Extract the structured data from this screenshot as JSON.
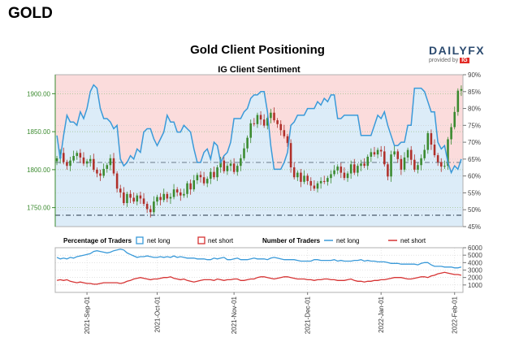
{
  "page": {
    "heading": "GOLD"
  },
  "brand": {
    "main": "DAILY",
    "fx": "FX",
    "sub": "provided by",
    "ig": "IG"
  },
  "chart_data": {
    "type": "candlestick-sentiment",
    "title": "Gold Client Positioning",
    "subtitle": "IG Client Sentiment",
    "colors": {
      "price_up": "#3a8a2e",
      "price_down": "#b0302a",
      "long": "#3a9ad9",
      "short": "#d63333",
      "fill_top": "#fbdcdc",
      "fill_bottom": "#dcecf8"
    },
    "price_axis": {
      "ticks": [
        "1750.00",
        "1800.00",
        "1850.00",
        "1900.00"
      ],
      "values": [
        1750,
        1800,
        1850,
        1900
      ],
      "range": [
        1725,
        1925
      ]
    },
    "pct_axis": {
      "ticks": [
        "45%",
        "50%",
        "55%",
        "60%",
        "65%",
        "70%",
        "75%",
        "80%",
        "85%",
        "90%"
      ],
      "values": [
        45,
        50,
        55,
        60,
        65,
        70,
        75,
        80,
        85,
        90
      ],
      "range": [
        45,
        90
      ]
    },
    "count_axis": {
      "ticks": [
        "1000",
        "2000",
        "3000",
        "4000",
        "5000",
        "6000"
      ],
      "values": [
        1000,
        2000,
        3000,
        4000,
        5000,
        6000
      ],
      "range": [
        0,
        6000
      ]
    },
    "x_labels": [
      "2021-Sep-01",
      "2021-Oct-01",
      "2021-Nov-01",
      "2021-Dec-01",
      "2022-Jan-01",
      "2022-Feb-01"
    ],
    "num_periods": 122,
    "x_label_index": [
      9,
      30,
      53,
      75,
      97,
      119
    ],
    "reference_lines": {
      "price_dashdot": 1740,
      "pct_dashdot": 64
    },
    "legend": {
      "pct_title": "Percentage of Traders",
      "count_title": "Number of Traders",
      "net_long": "net long",
      "net_short": "net short"
    },
    "closes": [
      1815,
      1822,
      1810,
      1805,
      1812,
      1818,
      1822,
      1816,
      1808,
      1811,
      1814,
      1800,
      1795,
      1792,
      1801,
      1806,
      1815,
      1795,
      1775,
      1770,
      1756,
      1768,
      1763,
      1758,
      1766,
      1762,
      1755,
      1748,
      1744,
      1758,
      1764,
      1760,
      1768,
      1762,
      1764,
      1774,
      1770,
      1766,
      1768,
      1782,
      1774,
      1786,
      1793,
      1790,
      1782,
      1788,
      1797,
      1790,
      1803,
      1812,
      1798,
      1805,
      1808,
      1797,
      1805,
      1815,
      1828,
      1842,
      1861,
      1860,
      1872,
      1866,
      1858,
      1868,
      1875,
      1865,
      1860,
      1852,
      1844,
      1835,
      1803,
      1790,
      1796,
      1784,
      1792,
      1785,
      1779,
      1775,
      1782,
      1785,
      1784,
      1789,
      1794,
      1799,
      1804,
      1796,
      1789,
      1795,
      1807,
      1796,
      1805,
      1808,
      1805,
      1817,
      1823,
      1820,
      1826,
      1824,
      1807,
      1791,
      1820,
      1824,
      1814,
      1800,
      1816,
      1826,
      1813,
      1800,
      1806,
      1815,
      1826,
      1848,
      1833,
      1819,
      1810,
      1804,
      1805,
      1840,
      1856,
      1876,
      1904,
      1906
    ],
    "net_long_pct": [
      72,
      65,
      72,
      78,
      76,
      76,
      75,
      79,
      77,
      80,
      85,
      87,
      86,
      80,
      77,
      77,
      76,
      74,
      75,
      65,
      63,
      64,
      66,
      65,
      68,
      67,
      73,
      74,
      74,
      71,
      69,
      71,
      73,
      78,
      76,
      76,
      73,
      73,
      75,
      74,
      73,
      68,
      64,
      64,
      67,
      68,
      65,
      70,
      69,
      64,
      66,
      67,
      70,
      77,
      77,
      77,
      79,
      80,
      83,
      84,
      84,
      85,
      85,
      79,
      69,
      62,
      62,
      62,
      64,
      67,
      75,
      76,
      78,
      78,
      78,
      80,
      80,
      80,
      82,
      81,
      83,
      82,
      84,
      84,
      77,
      77,
      78,
      78,
      78,
      78,
      78,
      72,
      72,
      72,
      72,
      75,
      78,
      77,
      79,
      75,
      72,
      69,
      69,
      70,
      70,
      75,
      75,
      86,
      86,
      86,
      85,
      82,
      79,
      79,
      70,
      68,
      69,
      64,
      61,
      63,
      62,
      65
    ],
    "net_long_count": [
      4700,
      4500,
      4600,
      4500,
      4700,
      4600,
      4800,
      4900,
      5000,
      5100,
      5200,
      5500,
      5600,
      5500,
      5400,
      5300,
      5400,
      5600,
      5700,
      5800,
      5700,
      5300,
      5100,
      4900,
      4700,
      4800,
      4800,
      4900,
      4800,
      4700,
      4700,
      4800,
      4700,
      4800,
      4700,
      4900,
      4700,
      4800,
      4700,
      4600,
      4600,
      4600,
      4500,
      4500,
      4500,
      4400,
      4400,
      4600,
      4500,
      4600,
      4700,
      4400,
      4400,
      4500,
      4600,
      4400,
      4400,
      4400,
      4500,
      4600,
      4500,
      4500,
      4500,
      4400,
      4600,
      4700,
      4600,
      4500,
      4400,
      4400,
      4400,
      4400,
      4300,
      4200,
      4200,
      4200,
      4200,
      4400,
      4400,
      4300,
      4300,
      4300,
      4300,
      4400,
      4200,
      4300,
      4200,
      4200,
      4200,
      4300,
      4300,
      4400,
      4200,
      4300,
      4200,
      4200,
      4100,
      4100,
      4100,
      4000,
      3900,
      3900,
      3900,
      3800,
      3800,
      3800,
      3800,
      3800,
      3700,
      3900,
      4000,
      4000,
      3700,
      3500,
      3500,
      3500,
      3400,
      3400,
      3400,
      3300,
      3300,
      3400
    ],
    "net_short_count": [
      1600,
      1700,
      1600,
      1700,
      1500,
      1400,
      1300,
      1400,
      1300,
      1200,
      1200,
      1100,
      1100,
      1200,
      1300,
      1300,
      1300,
      1300,
      1300,
      1200,
      1300,
      1500,
      1600,
      1800,
      1900,
      2000,
      1900,
      1800,
      1700,
      1800,
      1800,
      1900,
      2000,
      2000,
      2100,
      1900,
      1800,
      1700,
      1800,
      1600,
      1500,
      1400,
      1500,
      1600,
      1700,
      1700,
      1700,
      1600,
      1800,
      1700,
      1600,
      1700,
      1700,
      1800,
      1800,
      1600,
      1600,
      1700,
      1800,
      1800,
      2000,
      2100,
      2100,
      2000,
      1900,
      1800,
      1900,
      2000,
      2100,
      2100,
      2000,
      1900,
      1800,
      1800,
      1800,
      1700,
      1700,
      1600,
      1700,
      1700,
      1800,
      1800,
      1700,
      1700,
      1600,
      1600,
      1600,
      1700,
      1800,
      1600,
      1500,
      1500,
      1400,
      1500,
      1500,
      1600,
      1600,
      1700,
      1700,
      1800,
      1900,
      2000,
      2000,
      2000,
      1900,
      1800,
      1800,
      1900,
      2000,
      2100,
      2100,
      2000,
      2200,
      2300,
      2500,
      2600,
      2700,
      2600,
      2500,
      2400,
      2400,
      2300
    ]
  }
}
